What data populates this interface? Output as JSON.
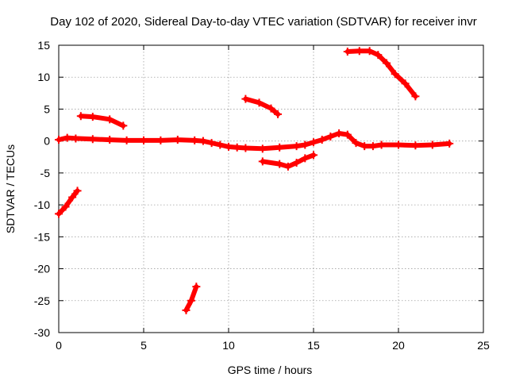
{
  "chart_data": {
    "type": "scatter",
    "title": "Day 102 of 2020, Sidereal Day-to-day VTEC variation (SDTVAR) for receiver invr",
    "xlabel": "GPS time / hours",
    "ylabel": "SDTVAR / TECUs",
    "xlim": [
      0,
      25
    ],
    "ylim": [
      -30,
      15
    ],
    "xticks": [
      0,
      5,
      10,
      15,
      20,
      25
    ],
    "yticks": [
      -30,
      -25,
      -20,
      -15,
      -10,
      -5,
      0,
      5,
      10,
      15
    ],
    "grid": true,
    "marker": "+",
    "color": "#ff0000",
    "series": [
      {
        "name": "main",
        "points": [
          [
            0,
            0.2
          ],
          [
            0.5,
            0.5
          ],
          [
            1,
            0.4
          ],
          [
            2,
            0.3
          ],
          [
            3,
            0.2
          ],
          [
            4,
            0.1
          ],
          [
            5,
            0.1
          ],
          [
            6,
            0.1
          ],
          [
            7,
            0.2
          ],
          [
            8,
            0.1
          ],
          [
            8.5,
            0
          ],
          [
            9,
            -0.3
          ],
          [
            9.5,
            -0.6
          ],
          [
            10,
            -0.9
          ],
          [
            10.5,
            -1.0
          ],
          [
            11,
            -1.1
          ],
          [
            12,
            -1.2
          ],
          [
            13,
            -1.0
          ],
          [
            14,
            -0.8
          ],
          [
            14.5,
            -0.6
          ],
          [
            15,
            -0.2
          ],
          [
            15.5,
            0.2
          ],
          [
            16,
            0.7
          ],
          [
            16.5,
            1.2
          ],
          [
            17,
            1.0
          ],
          [
            17.5,
            -0.3
          ],
          [
            18,
            -0.8
          ],
          [
            18.5,
            -0.8
          ],
          [
            19,
            -0.6
          ],
          [
            20,
            -0.6
          ],
          [
            21,
            -0.7
          ],
          [
            22,
            -0.6
          ],
          [
            23,
            -0.4
          ]
        ]
      },
      {
        "name": "segment-1",
        "points": [
          [
            1.3,
            3.9
          ],
          [
            2,
            3.8
          ],
          [
            3,
            3.4
          ],
          [
            3.8,
            2.4
          ]
        ]
      },
      {
        "name": "segment-2",
        "points": [
          [
            0,
            -11.4
          ],
          [
            0.4,
            -10.3
          ],
          [
            0.8,
            -8.8
          ],
          [
            1.1,
            -7.8
          ]
        ]
      },
      {
        "name": "segment-3",
        "points": [
          [
            7.5,
            -26.5
          ],
          [
            7.8,
            -25
          ],
          [
            8.1,
            -22.8
          ]
        ]
      },
      {
        "name": "segment-4",
        "points": [
          [
            11,
            6.6
          ],
          [
            11.8,
            6
          ],
          [
            12.5,
            5.1
          ],
          [
            12.9,
            4.2
          ]
        ]
      },
      {
        "name": "segment-5",
        "points": [
          [
            12,
            -3.2
          ],
          [
            13,
            -3.6
          ],
          [
            13.5,
            -4
          ],
          [
            14,
            -3.4
          ],
          [
            14.5,
            -2.7
          ],
          [
            15,
            -2.2
          ]
        ]
      },
      {
        "name": "segment-6",
        "points": [
          [
            17,
            14
          ],
          [
            17.7,
            14.1
          ],
          [
            18.3,
            14.1
          ],
          [
            18.8,
            13.5
          ],
          [
            19.3,
            12.2
          ],
          [
            19.8,
            10.5
          ],
          [
            20.4,
            9
          ],
          [
            21,
            7
          ]
        ]
      }
    ]
  }
}
